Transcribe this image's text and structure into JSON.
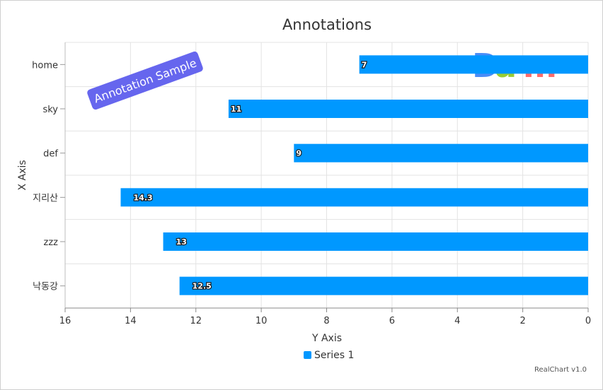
{
  "chart_data": {
    "type": "bar",
    "orientation": "horizontal",
    "title": "Annotations",
    "xlabel": "X Axis",
    "ylabel": "Y Axis",
    "categories": [
      "home",
      "sky",
      "def",
      "지리산",
      "zzz",
      "낙동강"
    ],
    "series": [
      {
        "name": "Series 1",
        "values": [
          7,
          11,
          9,
          14.3,
          13,
          12.5
        ],
        "color": "#0098ff"
      }
    ],
    "value_axis": {
      "min": 0,
      "max": 16,
      "reversed": true,
      "ticks": [
        16,
        14,
        12,
        10,
        8,
        6,
        4,
        2,
        0
      ]
    },
    "grid": true,
    "legend": "bottom-center",
    "data_labels": true
  },
  "annotations": {
    "text": "Annotation Sample",
    "fill": "#6666ee",
    "image_letters": [
      {
        "char": "D",
        "color": "#4a8cf7"
      },
      {
        "char": "a",
        "color": "#9acd32"
      },
      {
        "char": "m",
        "color": "#ff6b6b"
      }
    ]
  },
  "credits": "RealChart v1.0"
}
